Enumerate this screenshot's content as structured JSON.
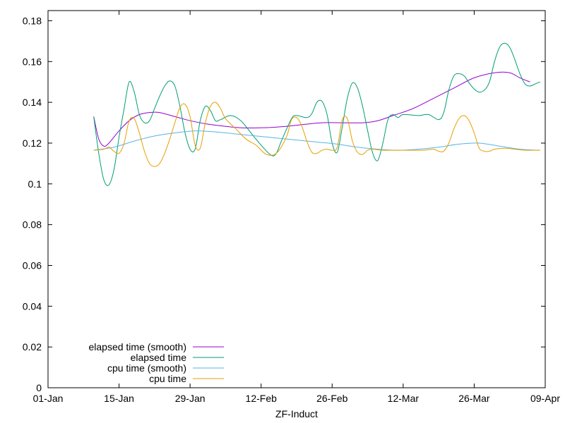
{
  "chart_data": {
    "type": "line",
    "title": "",
    "xlabel": "ZF-Induct",
    "ylabel": "",
    "x_axis": {
      "type": "date",
      "min": "2023-01-01",
      "max": "2023-04-09",
      "ticks": [
        {
          "date": "2023-01-01",
          "label": "01-Jan"
        },
        {
          "date": "2023-01-15",
          "label": "15-Jan"
        },
        {
          "date": "2023-01-29",
          "label": "29-Jan"
        },
        {
          "date": "2023-02-12",
          "label": "12-Feb"
        },
        {
          "date": "2023-02-26",
          "label": "26-Feb"
        },
        {
          "date": "2023-03-12",
          "label": "12-Mar"
        },
        {
          "date": "2023-03-26",
          "label": "26-Mar"
        },
        {
          "date": "2023-04-09",
          "label": "09-Apr"
        }
      ]
    },
    "y_axis": {
      "min": 0,
      "max": 0.185,
      "ticks": [
        {
          "value": 0,
          "label": "0"
        },
        {
          "value": 0.02,
          "label": "0.02"
        },
        {
          "value": 0.04,
          "label": "0.04"
        },
        {
          "value": 0.06,
          "label": "0.06"
        },
        {
          "value": 0.08,
          "label": "0.08"
        },
        {
          "value": 0.1,
          "label": "0.1"
        },
        {
          "value": 0.12,
          "label": "0.12"
        },
        {
          "value": 0.14,
          "label": "0.14"
        },
        {
          "value": 0.16,
          "label": "0.16"
        },
        {
          "value": 0.18,
          "label": "0.18"
        }
      ]
    },
    "grid": false,
    "legend_position": "bottom-left",
    "series": [
      {
        "name": "elapsed time (smooth)",
        "color": "#9400d3",
        "points": [
          [
            "2023-01-10",
            0.133
          ],
          [
            "2023-01-11",
            0.122
          ],
          [
            "2023-01-12",
            0.1185
          ],
          [
            "2023-01-13",
            0.12
          ],
          [
            "2023-01-15",
            0.126
          ],
          [
            "2023-01-17",
            0.131
          ],
          [
            "2023-01-19",
            0.134
          ],
          [
            "2023-01-21",
            0.135
          ],
          [
            "2023-01-23",
            0.135
          ],
          [
            "2023-01-26",
            0.133
          ],
          [
            "2023-01-29",
            0.131
          ],
          [
            "2023-02-01",
            0.1295
          ],
          [
            "2023-02-04",
            0.1285
          ],
          [
            "2023-02-08",
            0.1275
          ],
          [
            "2023-02-12",
            0.1275
          ],
          [
            "2023-02-16",
            0.128
          ],
          [
            "2023-02-20",
            0.129
          ],
          [
            "2023-02-24",
            0.13
          ],
          [
            "2023-02-28",
            0.13
          ],
          [
            "2023-03-04",
            0.13
          ],
          [
            "2023-03-07",
            0.131
          ],
          [
            "2023-03-10",
            0.1335
          ],
          [
            "2023-03-14",
            0.137
          ],
          [
            "2023-03-18",
            0.142
          ],
          [
            "2023-03-22",
            0.147
          ],
          [
            "2023-03-26",
            0.152
          ],
          [
            "2023-03-30",
            0.1545
          ],
          [
            "2023-04-02",
            0.1545
          ],
          [
            "2023-04-04",
            0.152
          ],
          [
            "2023-04-06",
            0.15
          ]
        ]
      },
      {
        "name": "elapsed time",
        "color": "#009e73",
        "points": [
          [
            "2023-01-10",
            0.133
          ],
          [
            "2023-01-11",
            0.115
          ],
          [
            "2023-01-12",
            0.102
          ],
          [
            "2023-01-13",
            0.0995
          ],
          [
            "2023-01-14",
            0.107
          ],
          [
            "2023-01-15",
            0.123
          ],
          [
            "2023-01-16",
            0.137
          ],
          [
            "2023-01-17",
            0.15
          ],
          [
            "2023-01-18",
            0.145
          ],
          [
            "2023-01-19",
            0.134
          ],
          [
            "2023-01-20",
            0.13
          ],
          [
            "2023-01-21",
            0.131
          ],
          [
            "2023-01-22",
            0.137
          ],
          [
            "2023-01-23",
            0.143
          ],
          [
            "2023-01-24",
            0.148
          ],
          [
            "2023-01-25",
            0.1505
          ],
          [
            "2023-01-26",
            0.148
          ],
          [
            "2023-01-27",
            0.138
          ],
          [
            "2023-01-28",
            0.125
          ],
          [
            "2023-01-29",
            0.117
          ],
          [
            "2023-01-30",
            0.117
          ],
          [
            "2023-01-31",
            0.131
          ],
          [
            "2023-02-01",
            0.138
          ],
          [
            "2023-02-02",
            0.136
          ],
          [
            "2023-02-03",
            0.131
          ],
          [
            "2023-02-04",
            0.1315
          ],
          [
            "2023-02-06",
            0.1335
          ],
          [
            "2023-02-08",
            0.131
          ],
          [
            "2023-02-10",
            0.125
          ],
          [
            "2023-02-12",
            0.119
          ],
          [
            "2023-02-14",
            0.114
          ],
          [
            "2023-02-15",
            0.115
          ],
          [
            "2023-02-16",
            0.121
          ],
          [
            "2023-02-18",
            0.132
          ],
          [
            "2023-02-19",
            0.1335
          ],
          [
            "2023-02-21",
            0.1325
          ],
          [
            "2023-02-22",
            0.1345
          ],
          [
            "2023-02-23",
            0.14
          ],
          [
            "2023-02-24",
            0.1405
          ],
          [
            "2023-02-25",
            0.134
          ],
          [
            "2023-02-26",
            0.12
          ],
          [
            "2023-02-27",
            0.1155
          ],
          [
            "2023-02-28",
            0.128
          ],
          [
            "2023-03-01",
            0.142
          ],
          [
            "2023-03-02",
            0.1495
          ],
          [
            "2023-03-03",
            0.147
          ],
          [
            "2023-03-04",
            0.138
          ],
          [
            "2023-03-05",
            0.126
          ],
          [
            "2023-03-06",
            0.115
          ],
          [
            "2023-03-07",
            0.1115
          ],
          [
            "2023-03-08",
            0.12
          ],
          [
            "2023-03-09",
            0.1315
          ],
          [
            "2023-03-10",
            0.134
          ],
          [
            "2023-03-11",
            0.1325
          ],
          [
            "2023-03-12",
            0.134
          ],
          [
            "2023-03-15",
            0.1335
          ],
          [
            "2023-03-17",
            0.134
          ],
          [
            "2023-03-19",
            0.1315
          ],
          [
            "2023-03-20",
            0.135
          ],
          [
            "2023-03-21",
            0.146
          ],
          [
            "2023-03-22",
            0.153
          ],
          [
            "2023-03-23",
            0.154
          ],
          [
            "2023-03-24",
            0.153
          ],
          [
            "2023-03-25",
            0.1495
          ],
          [
            "2023-03-26",
            0.1465
          ],
          [
            "2023-03-27",
            0.145
          ],
          [
            "2023-03-28",
            0.146
          ],
          [
            "2023-03-29",
            0.15
          ],
          [
            "2023-03-30",
            0.16
          ],
          [
            "2023-03-31",
            0.167
          ],
          [
            "2023-04-01",
            0.169
          ],
          [
            "2023-04-02",
            0.167
          ],
          [
            "2023-04-03",
            0.161
          ],
          [
            "2023-04-04",
            0.154
          ],
          [
            "2023-04-05",
            0.149
          ],
          [
            "2023-04-06",
            0.148
          ],
          [
            "2023-04-07",
            0.149
          ],
          [
            "2023-04-08",
            0.15
          ]
        ]
      },
      {
        "name": "cpu time (smooth)",
        "color": "#56b4e9",
        "points": [
          [
            "2023-01-10",
            0.1165
          ],
          [
            "2023-01-14",
            0.118
          ],
          [
            "2023-01-18",
            0.121
          ],
          [
            "2023-01-22",
            0.1235
          ],
          [
            "2023-01-26",
            0.125
          ],
          [
            "2023-01-30",
            0.126
          ],
          [
            "2023-02-03",
            0.1255
          ],
          [
            "2023-02-07",
            0.1245
          ],
          [
            "2023-02-11",
            0.1235
          ],
          [
            "2023-02-15",
            0.1225
          ],
          [
            "2023-02-19",
            0.1215
          ],
          [
            "2023-02-23",
            0.1205
          ],
          [
            "2023-02-27",
            0.1195
          ],
          [
            "2023-03-03",
            0.118
          ],
          [
            "2023-03-07",
            0.117
          ],
          [
            "2023-03-11",
            0.1165
          ],
          [
            "2023-03-15",
            0.117
          ],
          [
            "2023-03-19",
            0.118
          ],
          [
            "2023-03-23",
            0.1195
          ],
          [
            "2023-03-27",
            0.12
          ],
          [
            "2023-03-31",
            0.1185
          ],
          [
            "2023-04-04",
            0.117
          ],
          [
            "2023-04-08",
            0.1165
          ]
        ]
      },
      {
        "name": "cpu time",
        "color": "#e69f00",
        "points": [
          [
            "2023-01-10",
            0.1165
          ],
          [
            "2023-01-12",
            0.117
          ],
          [
            "2023-01-13",
            0.118
          ],
          [
            "2023-01-14",
            0.116
          ],
          [
            "2023-01-15",
            0.115
          ],
          [
            "2023-01-16",
            0.12
          ],
          [
            "2023-01-17",
            0.131
          ],
          [
            "2023-01-18",
            0.132
          ],
          [
            "2023-01-19",
            0.125
          ],
          [
            "2023-01-20",
            0.116
          ],
          [
            "2023-01-21",
            0.11
          ],
          [
            "2023-01-22",
            0.1085
          ],
          [
            "2023-01-23",
            0.11
          ],
          [
            "2023-01-24",
            0.115
          ],
          [
            "2023-01-25",
            0.122
          ],
          [
            "2023-01-26",
            0.13
          ],
          [
            "2023-01-27",
            0.1375
          ],
          [
            "2023-01-28",
            0.139
          ],
          [
            "2023-01-29",
            0.133
          ],
          [
            "2023-01-30",
            0.119
          ],
          [
            "2023-01-31",
            0.1175
          ],
          [
            "2023-02-01",
            0.13
          ],
          [
            "2023-02-02",
            0.138
          ],
          [
            "2023-02-03",
            0.14
          ],
          [
            "2023-02-04",
            0.137
          ],
          [
            "2023-02-05",
            0.132
          ],
          [
            "2023-02-07",
            0.127
          ],
          [
            "2023-02-09",
            0.122
          ],
          [
            "2023-02-11",
            0.119
          ],
          [
            "2023-02-13",
            0.1145
          ],
          [
            "2023-02-15",
            0.115
          ],
          [
            "2023-02-17",
            0.123
          ],
          [
            "2023-02-18",
            0.1315
          ],
          [
            "2023-02-19",
            0.1325
          ],
          [
            "2023-02-20",
            0.1285
          ],
          [
            "2023-02-21",
            0.121
          ],
          [
            "2023-02-22",
            0.1155
          ],
          [
            "2023-02-23",
            0.115
          ],
          [
            "2023-02-24",
            0.1165
          ],
          [
            "2023-02-25",
            0.117
          ],
          [
            "2023-02-26",
            0.1165
          ],
          [
            "2023-02-27",
            0.118
          ],
          [
            "2023-02-28",
            0.1315
          ],
          [
            "2023-03-01",
            0.132
          ],
          [
            "2023-03-02",
            0.121
          ],
          [
            "2023-03-03",
            0.1155
          ],
          [
            "2023-03-04",
            0.1145
          ],
          [
            "2023-03-05",
            0.1165
          ],
          [
            "2023-03-06",
            0.117
          ],
          [
            "2023-03-08",
            0.1165
          ],
          [
            "2023-03-12",
            0.1165
          ],
          [
            "2023-03-16",
            0.1165
          ],
          [
            "2023-03-18",
            0.117
          ],
          [
            "2023-03-19",
            0.116
          ],
          [
            "2023-03-20",
            0.116
          ],
          [
            "2023-03-21",
            0.12
          ],
          [
            "2023-03-22",
            0.127
          ],
          [
            "2023-03-23",
            0.132
          ],
          [
            "2023-03-24",
            0.1335
          ],
          [
            "2023-03-25",
            0.131
          ],
          [
            "2023-03-26",
            0.125
          ],
          [
            "2023-03-27",
            0.1175
          ],
          [
            "2023-03-28",
            0.116
          ],
          [
            "2023-03-29",
            0.116
          ],
          [
            "2023-03-30",
            0.117
          ],
          [
            "2023-04-01",
            0.1175
          ],
          [
            "2023-04-03",
            0.117
          ],
          [
            "2023-04-05",
            0.1165
          ],
          [
            "2023-04-08",
            0.1165
          ]
        ]
      }
    ]
  }
}
